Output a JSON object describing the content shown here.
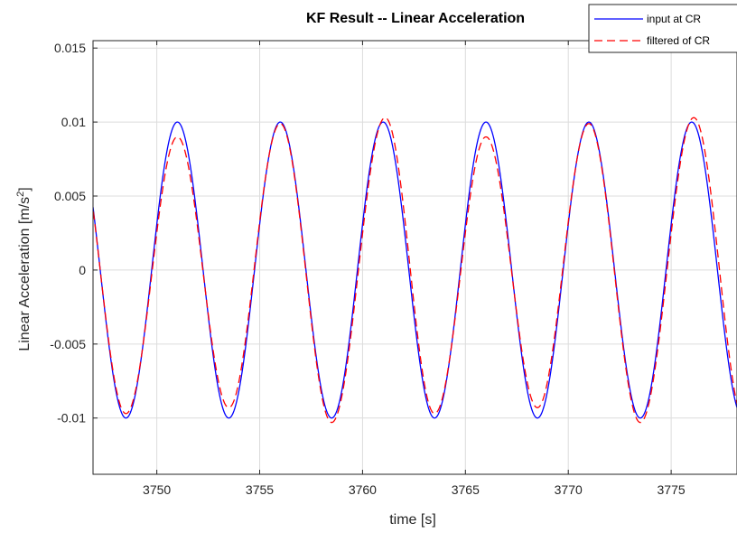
{
  "chart_data": {
    "type": "line",
    "title": "KF Result -- Linear Acceleration",
    "xlabel": "time [s]",
    "ylabel_main": "Linear Acceleration [m/s",
    "ylabel_sup": "2",
    "ylabel_end": "]",
    "xlim": [
      3746.9,
      3778.2
    ],
    "ylim": [
      -0.0138,
      0.0155
    ],
    "xticks": [
      3750,
      3755,
      3760,
      3765,
      3770,
      3775
    ],
    "xtick_labels": [
      "3750",
      "3755",
      "3760",
      "3765",
      "3770",
      "3775"
    ],
    "yticks": [
      -0.01,
      -0.005,
      0,
      0.005,
      0.01,
      0.015
    ],
    "ytick_labels": [
      "-0.01",
      "-0.005",
      "0",
      "0.005",
      "0.01",
      "0.015"
    ],
    "grid": true,
    "legend_position": "top-right",
    "series": [
      {
        "name": "input at CR",
        "color": "#0000ff",
        "style": "solid",
        "amplitude": 0.01,
        "period": 5,
        "peak_times": [
          3751,
          3756,
          3761,
          3766,
          3771,
          3776
        ]
      },
      {
        "name": "filtered of CR",
        "color": "#ff0000",
        "style": "dashed",
        "period": 5,
        "peaks": [
          {
            "x": 3751.0,
            "y": 0.009
          },
          {
            "x": 3756.0,
            "y": 0.0099
          },
          {
            "x": 3761.1,
            "y": 0.0103
          },
          {
            "x": 3766.0,
            "y": 0.009
          },
          {
            "x": 3771.0,
            "y": 0.0099
          },
          {
            "x": 3776.1,
            "y": 0.0103
          }
        ],
        "troughs": [
          {
            "x": 3748.5,
            "y": -0.0097
          },
          {
            "x": 3753.5,
            "y": -0.0093
          },
          {
            "x": 3758.5,
            "y": -0.0103
          },
          {
            "x": 3763.5,
            "y": -0.0097
          },
          {
            "x": 3768.5,
            "y": -0.0093
          },
          {
            "x": 3773.5,
            "y": -0.0103
          }
        ]
      }
    ]
  }
}
